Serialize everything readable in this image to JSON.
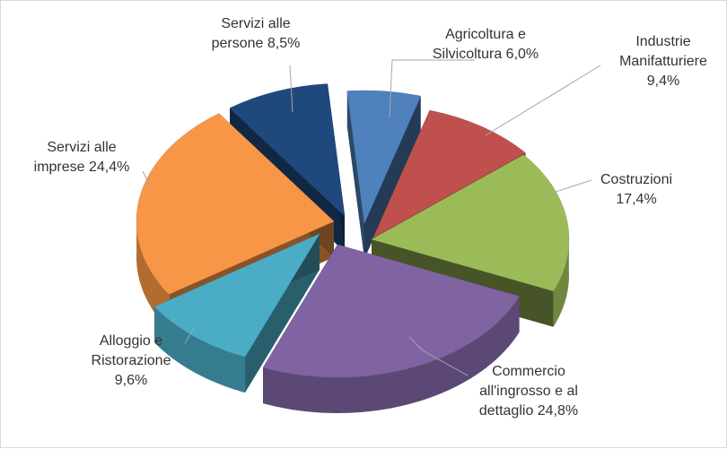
{
  "chart_data": {
    "type": "pie",
    "style": "3d-exploded",
    "title": "",
    "slices": [
      {
        "name": "Agricoltura e Silvicoltura",
        "value": 6.0,
        "label_lines": [
          "Agricoltura e",
          "Silvicoltura 6,0%"
        ],
        "color": "#4f81bd"
      },
      {
        "name": "Industrie Manifatturiere",
        "value": 9.4,
        "label_lines": [
          "Industrie",
          "Manifatturiere",
          "9,4%"
        ],
        "color": "#c0504d"
      },
      {
        "name": "Costruzioni",
        "value": 17.4,
        "label_lines": [
          "Costruzioni",
          "17,4%"
        ],
        "color": "#9bbb59"
      },
      {
        "name": "Commercio all'ingrosso e al dettaglio",
        "value": 24.8,
        "label_lines": [
          "Commercio",
          "all'ingrosso  e al",
          "dettaglio 24,8%"
        ],
        "color": "#8064a2"
      },
      {
        "name": "Alloggio e Ristorazione",
        "value": 9.6,
        "label_lines": [
          "Alloggio e",
          "Ristorazione",
          "9,6%"
        ],
        "color": "#4bacc6"
      },
      {
        "name": "Servizi alle imprese",
        "value": 24.4,
        "label_lines": [
          "Servizi alle",
          "imprese 24,4%"
        ],
        "color": "#f79646"
      },
      {
        "name": "Servizi alle persone",
        "value": 8.5,
        "label_lines": [
          "Servizi alle",
          "persone 8,5%"
        ],
        "color": "#1f497d"
      }
    ],
    "legend": "none",
    "labels": "outside with leader lines"
  }
}
